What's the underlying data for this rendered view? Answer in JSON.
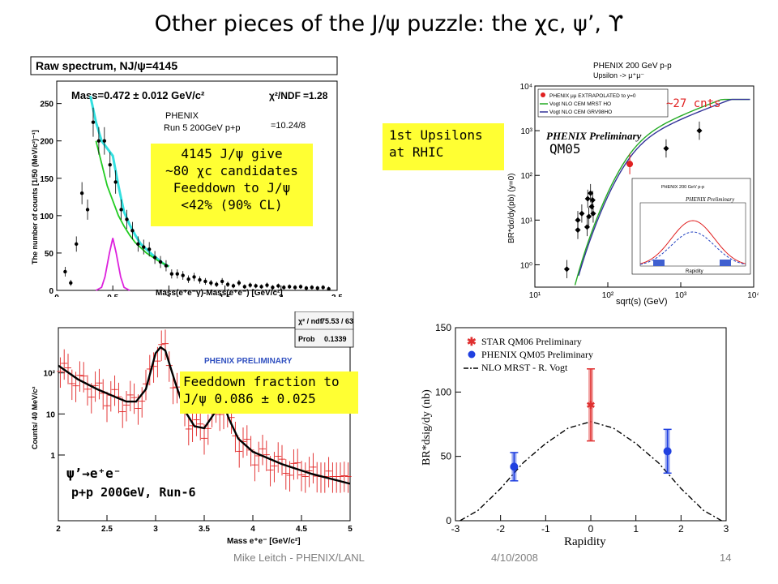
{
  "slide": {
    "title": "Other pieces of the J/ψ puzzle: the χc, ψ’, ϒ",
    "footer_left": "Mike Leitch - PHENIX/LANL",
    "footer_date": "4/10/2008",
    "page_number": "14"
  },
  "chic_panel": {
    "header": "Raw spectrum, NJ/ψ=4145",
    "mass_label": "Mass=0.472 ± 0.012 GeV/c²",
    "chi2_label": "χ²/NDF",
    "chi2_value": "=1.28",
    "chi2_detail": "=10.24/8",
    "phenix_label": "PHENIX",
    "run_label": "Run 5 200GeV p+p",
    "note_lines": [
      "4145 J/ψ give",
      "~80 χc candidates",
      "Feeddown to J/ψ",
      "<42% (90% CL)"
    ],
    "chart_data": {
      "type": "scatter",
      "xlabel": "Mass(e⁺e⁻γ)-Mass(e⁺e⁻) [GeV/c²]",
      "ylabel": "The number of counts [1/50 (MeV/c²)⁻¹]",
      "xlim": [
        0,
        2.5
      ],
      "ylim": [
        0,
        280
      ],
      "xticks": [
        "0",
        "0.5",
        "1",
        "1.5",
        "2",
        "2.5"
      ],
      "yticks": [
        "0",
        "50",
        "100",
        "150",
        "200",
        "250"
      ],
      "points": [
        [
          0.075,
          25
        ],
        [
          0.125,
          10
        ],
        [
          0.175,
          62
        ],
        [
          0.225,
          130
        ],
        [
          0.275,
          108
        ],
        [
          0.325,
          225
        ],
        [
          0.375,
          200
        ],
        [
          0.425,
          200
        ],
        [
          0.475,
          168
        ],
        [
          0.525,
          145
        ],
        [
          0.575,
          108
        ],
        [
          0.625,
          95
        ],
        [
          0.675,
          80
        ],
        [
          0.725,
          62
        ],
        [
          0.775,
          58
        ],
        [
          0.825,
          55
        ],
        [
          0.875,
          44
        ],
        [
          0.925,
          38
        ],
        [
          0.975,
          33
        ],
        [
          1.025,
          22
        ],
        [
          1.075,
          22
        ],
        [
          1.125,
          20
        ],
        [
          1.175,
          15
        ],
        [
          1.225,
          18
        ],
        [
          1.275,
          14
        ],
        [
          1.325,
          12
        ],
        [
          1.375,
          10
        ],
        [
          1.425,
          8
        ],
        [
          1.475,
          12
        ],
        [
          1.525,
          8
        ],
        [
          1.575,
          6
        ],
        [
          1.625,
          10
        ],
        [
          1.675,
          5
        ],
        [
          1.725,
          7
        ],
        [
          1.775,
          6
        ],
        [
          1.825,
          5
        ],
        [
          1.875,
          7
        ],
        [
          1.925,
          4
        ],
        [
          1.975,
          6
        ],
        [
          2.025,
          4
        ],
        [
          2.075,
          5
        ],
        [
          2.125,
          4
        ],
        [
          2.175,
          5
        ],
        [
          2.225,
          3
        ],
        [
          2.275,
          4
        ],
        [
          2.325,
          3
        ],
        [
          2.375,
          4
        ],
        [
          2.425,
          2
        ]
      ],
      "total_fit": [
        [
          0.3,
          260
        ],
        [
          0.35,
          225
        ],
        [
          0.4,
          200
        ],
        [
          0.45,
          190
        ],
        [
          0.5,
          180
        ],
        [
          0.55,
          140
        ],
        [
          0.6,
          105
        ],
        [
          0.65,
          88
        ],
        [
          0.7,
          74
        ],
        [
          0.75,
          62
        ],
        [
          0.8,
          55
        ],
        [
          0.85,
          48
        ],
        [
          0.9,
          42
        ],
        [
          0.95,
          36
        ],
        [
          1.0,
          32
        ]
      ],
      "background_fit": [
        [
          0.35,
          200
        ],
        [
          0.4,
          170
        ],
        [
          0.45,
          140
        ],
        [
          0.5,
          120
        ],
        [
          0.55,
          100
        ],
        [
          0.6,
          86
        ],
        [
          0.65,
          74
        ],
        [
          0.7,
          64
        ],
        [
          0.75,
          57
        ],
        [
          0.8,
          50
        ],
        [
          0.85,
          45
        ],
        [
          0.9,
          40
        ],
        [
          0.95,
          36
        ],
        [
          1.0,
          32
        ]
      ],
      "signal_fit": [
        [
          0.35,
          0
        ],
        [
          0.4,
          4
        ],
        [
          0.43,
          18
        ],
        [
          0.47,
          50
        ],
        [
          0.5,
          70
        ],
        [
          0.53,
          50
        ],
        [
          0.57,
          18
        ],
        [
          0.6,
          4
        ],
        [
          0.65,
          0
        ]
      ]
    }
  },
  "upsilon_panel": {
    "header": "PHENIX 200 GeV p-p",
    "subheader": "Upsilon -> μ⁺μ⁻",
    "legend": [
      "PHENIX μμ EXTRAPOLATED to y=0",
      "Vogt NLO CEM MRST HO",
      "Vogt NLO CEM GRV98HO"
    ],
    "preliminary": "PHENIX Preliminary",
    "counts_label": "~27 cnts",
    "qm_label": "QM05",
    "note_lines": [
      "1st Upsilons",
      "at RHIC"
    ],
    "chart_data": {
      "type": "scatter",
      "xlabel": "sqrt(s) (GeV)",
      "ylabel": "BR*dσ/dy(pb) (y=0)",
      "x_scale": "log",
      "y_scale": "log",
      "xticks": [
        "10¹",
        "10²",
        "10³",
        "10⁴"
      ],
      "yticks": [
        "10⁰",
        "10¹",
        "10²",
        "10³",
        "10⁴"
      ],
      "series": [
        {
          "name": "PHENIX μμ EXTRAPOLATED to y=0",
          "points": [
            [
              200,
              180
            ]
          ]
        },
        {
          "points": [
            [
              27.4,
              0.8
            ],
            [
              38.8,
              6
            ],
            [
              38.8,
              10
            ],
            [
              44,
              14
            ],
            [
              52,
              7
            ],
            [
              53,
              30
            ],
            [
              55,
              12
            ],
            [
              58,
              40
            ],
            [
              60,
              20
            ],
            [
              62,
              28
            ],
            [
              63,
              14
            ],
            [
              630,
              400
            ],
            [
              1800,
              1000
            ]
          ]
        }
      ]
    },
    "inset": {
      "title": "PHENIX 200 GeV p-p",
      "preliminary": "PHENIX Preliminary",
      "xlabel": "Rapidity"
    }
  },
  "psiprime_panel": {
    "chi2_label": "χ² / ndf",
    "chi2_value": "75.53 / 63",
    "prob_label": "Prob",
    "prob_value": "0.1339",
    "preliminary": "PHENIX PRELIMINARY",
    "process_label": "ψ’→e⁺e⁻",
    "run_label": "p+p 200GeV, Run-6",
    "note_lines": [
      "Feeddown fraction to",
      "J/ψ 0.086 ± 0.025"
    ],
    "chart_data": {
      "type": "line",
      "xlabel": "Mass e⁺e⁻ [GeV/c²]",
      "ylabel": "Counts/ 40 MeV/c²",
      "y_scale": "log",
      "xlim": [
        2,
        5
      ],
      "xticks": [
        "2",
        "2.5",
        "3",
        "3.5",
        "4",
        "4.5",
        "5"
      ],
      "yticks": [
        "1",
        "10",
        "10²"
      ],
      "fit": [
        [
          2.0,
          150
        ],
        [
          2.2,
          70
        ],
        [
          2.4,
          40
        ],
        [
          2.6,
          25
        ],
        [
          2.7,
          20
        ],
        [
          2.8,
          20
        ],
        [
          2.9,
          40
        ],
        [
          3.0,
          300
        ],
        [
          3.05,
          420
        ],
        [
          3.1,
          350
        ],
        [
          3.2,
          60
        ],
        [
          3.3,
          12
        ],
        [
          3.4,
          5
        ],
        [
          3.5,
          4.5
        ],
        [
          3.6,
          10
        ],
        [
          3.7,
          18
        ],
        [
          3.75,
          8
        ],
        [
          3.85,
          2.5
        ],
        [
          4.0,
          1.2
        ],
        [
          4.3,
          0.6
        ],
        [
          4.6,
          0.35
        ],
        [
          5.0,
          0.2
        ]
      ]
    }
  },
  "rapidity_panel": {
    "legend": [
      "STAR QM06 Preliminary",
      "PHENIX QM05 Preliminary",
      "NLO MRST - R. Vogt"
    ],
    "colors": {
      "star": "#e03030",
      "phenix": "#2040e0"
    },
    "chart_data": {
      "type": "scatter",
      "xlabel": "Rapidity",
      "ylabel": "BR*dsig/dy (nb)",
      "xlim": [
        -3,
        3
      ],
      "ylim": [
        0,
        150
      ],
      "xticks": [
        "-3",
        "-2",
        "-1",
        "0",
        "1",
        "2",
        "3"
      ],
      "yticks": [
        "0",
        "50",
        "100",
        "150"
      ],
      "series": [
        {
          "name": "STAR QM06 Preliminary",
          "points": [
            [
              0,
              90,
              28
            ]
          ]
        },
        {
          "name": "PHENIX QM05 Preliminary",
          "points": [
            [
              -1.7,
              42,
              11
            ],
            [
              1.7,
              54,
              17
            ]
          ]
        },
        {
          "name": "NLO MRST - R. Vogt",
          "points": [
            [
              -2.9,
              0
            ],
            [
              -2.5,
              8
            ],
            [
              -2.0,
              25
            ],
            [
              -1.5,
              45
            ],
            [
              -1.0,
              60
            ],
            [
              -0.5,
              72
            ],
            [
              0,
              77
            ],
            [
              0.5,
              72
            ],
            [
              1.0,
              60
            ],
            [
              1.5,
              45
            ],
            [
              2.0,
              25
            ],
            [
              2.5,
              8
            ],
            [
              2.9,
              0
            ]
          ]
        }
      ]
    }
  }
}
